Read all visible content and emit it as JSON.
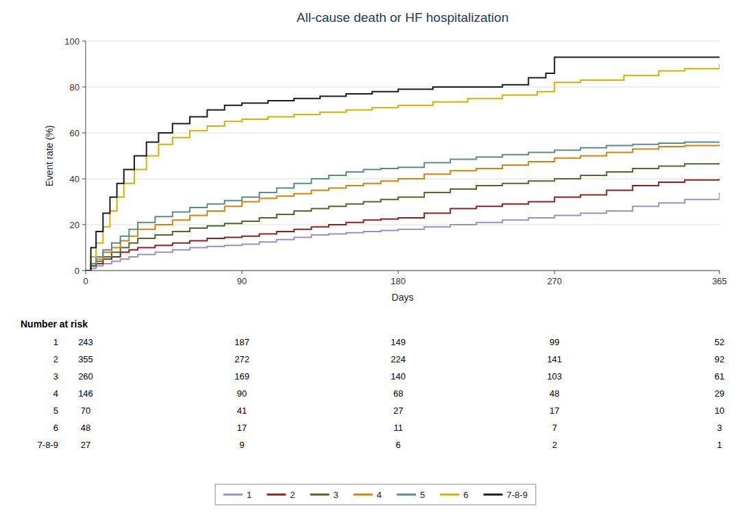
{
  "chart_data": {
    "type": "line",
    "line_style": "steps",
    "title": "All-cause death or HF hospitalization",
    "title_color": "#1F3864",
    "x_label": "Days",
    "y_label": "Event rate (%)",
    "xlim": [
      0,
      365
    ],
    "ylim": [
      0,
      100
    ],
    "xticks": [
      0,
      90,
      180,
      270,
      365
    ],
    "yticks": [
      0,
      20,
      40,
      60,
      80,
      100
    ],
    "grid": true,
    "legend": "bottom",
    "series": [
      {
        "name": "1",
        "color": "#9B8EC4",
        "x": [
          0,
          3,
          6,
          10,
          15,
          20,
          25,
          30,
          40,
          50,
          60,
          70,
          80,
          90,
          100,
          110,
          120,
          130,
          140,
          150,
          160,
          170,
          180,
          195,
          210,
          225,
          240,
          255,
          270,
          285,
          300,
          315,
          330,
          345,
          365
        ],
        "values": [
          0,
          1,
          2,
          3,
          4,
          5,
          6,
          7,
          8,
          9,
          10,
          10.5,
          11,
          11.5,
          12.5,
          13.5,
          14.5,
          15.5,
          16,
          16.5,
          17,
          17.5,
          18,
          19,
          20,
          21,
          22,
          23,
          24,
          25,
          26,
          28,
          29.5,
          31,
          34
        ]
      },
      {
        "name": "2",
        "color": "#8B2020",
        "x": [
          0,
          3,
          6,
          10,
          15,
          20,
          25,
          30,
          40,
          50,
          60,
          70,
          80,
          90,
          100,
          110,
          120,
          130,
          140,
          150,
          160,
          170,
          180,
          195,
          210,
          225,
          240,
          255,
          270,
          285,
          300,
          315,
          330,
          345,
          365
        ],
        "values": [
          0,
          2,
          3,
          5,
          6,
          8,
          9,
          10,
          11,
          12,
          13,
          14,
          14.5,
          15,
          16,
          17,
          18,
          19,
          20,
          21,
          22,
          22.5,
          23,
          25,
          27,
          28,
          29,
          30,
          32,
          33,
          35,
          37,
          38.5,
          39.5,
          40
        ]
      },
      {
        "name": "3",
        "color": "#4A6B28",
        "x": [
          0,
          3,
          6,
          10,
          15,
          20,
          25,
          30,
          40,
          50,
          60,
          70,
          80,
          90,
          100,
          110,
          120,
          130,
          140,
          150,
          160,
          170,
          180,
          195,
          210,
          225,
          240,
          255,
          270,
          285,
          300,
          315,
          330,
          345,
          365
        ],
        "values": [
          0,
          2,
          4,
          6,
          8,
          10,
          12,
          14,
          15.5,
          17,
          18.5,
          19.5,
          20.5,
          21.5,
          23,
          24.5,
          26,
          27,
          28,
          29,
          30,
          31,
          32,
          34,
          35.5,
          37,
          38,
          39,
          40,
          41.5,
          43,
          44.5,
          45.5,
          46.5,
          47
        ]
      },
      {
        "name": "4",
        "color": "#D4820A",
        "x": [
          0,
          3,
          6,
          10,
          15,
          20,
          25,
          30,
          40,
          50,
          60,
          70,
          80,
          90,
          100,
          110,
          120,
          130,
          140,
          150,
          160,
          170,
          180,
          195,
          210,
          225,
          240,
          255,
          270,
          285,
          300,
          315,
          330,
          345,
          365
        ],
        "values": [
          0,
          3,
          5,
          8,
          10,
          13,
          15,
          18,
          20,
          22,
          24,
          26,
          28,
          30,
          31.5,
          32.5,
          33.5,
          35,
          36,
          37,
          38,
          39,
          40,
          42,
          43.5,
          44.5,
          46,
          47.5,
          49,
          50,
          51.5,
          53,
          54,
          54.5,
          55
        ]
      },
      {
        "name": "5",
        "color": "#5B8A8A",
        "x": [
          0,
          3,
          6,
          10,
          15,
          20,
          25,
          30,
          40,
          50,
          60,
          70,
          80,
          90,
          100,
          110,
          120,
          130,
          140,
          150,
          160,
          170,
          180,
          195,
          210,
          225,
          240,
          255,
          270,
          285,
          300,
          315,
          330,
          345,
          365
        ],
        "values": [
          0,
          3,
          6,
          9,
          12,
          15,
          18,
          21,
          23.5,
          25.5,
          27.5,
          29,
          30.5,
          32,
          34,
          36,
          38,
          40,
          41.5,
          43,
          44,
          44.5,
          45,
          47,
          48.5,
          49.5,
          50.5,
          51.5,
          52.5,
          53.5,
          54.5,
          55,
          55.5,
          56,
          56
        ]
      },
      {
        "name": "6",
        "color": "#D4B000",
        "x": [
          0,
          3,
          6,
          10,
          14,
          18,
          22,
          28,
          35,
          42,
          50,
          60,
          70,
          80,
          90,
          105,
          120,
          135,
          150,
          165,
          180,
          200,
          220,
          240,
          260,
          270,
          285,
          310,
          330,
          345,
          365
        ],
        "values": [
          0,
          6,
          12,
          19,
          26,
          32,
          38,
          44,
          50,
          55,
          58,
          61,
          63,
          65,
          66,
          67,
          68,
          69,
          70,
          71,
          72,
          73.5,
          75,
          76.5,
          78,
          82,
          83,
          85,
          87,
          88,
          90
        ]
      },
      {
        "name": "7-8-9",
        "color": "#1A1A1A",
        "x": [
          0,
          3,
          6,
          10,
          14,
          18,
          22,
          28,
          35,
          42,
          50,
          60,
          70,
          80,
          90,
          105,
          120,
          135,
          150,
          165,
          180,
          200,
          220,
          240,
          255,
          265,
          270,
          285,
          310,
          330,
          365
        ],
        "values": [
          0,
          10,
          17,
          25,
          32,
          38,
          44,
          50,
          56,
          60,
          64,
          67,
          70,
          72,
          73,
          74,
          75,
          76,
          77,
          78,
          79,
          80,
          80,
          81,
          84,
          86,
          93,
          93,
          93,
          93,
          93
        ]
      }
    ],
    "number_at_risk": {
      "title": "Number at risk",
      "labels": [
        "1",
        "2",
        "3",
        "4",
        "5",
        "6",
        "7-8-9"
      ],
      "timepoints": [
        0,
        90,
        180,
        270,
        365
      ],
      "values": [
        [
          243,
          187,
          149,
          99,
          52
        ],
        [
          355,
          272,
          224,
          141,
          92
        ],
        [
          260,
          169,
          140,
          103,
          61
        ],
        [
          146,
          90,
          68,
          48,
          29
        ],
        [
          70,
          41,
          27,
          17,
          10
        ],
        [
          48,
          17,
          11,
          7,
          3
        ],
        [
          27,
          9,
          6,
          2,
          1
        ]
      ]
    }
  }
}
